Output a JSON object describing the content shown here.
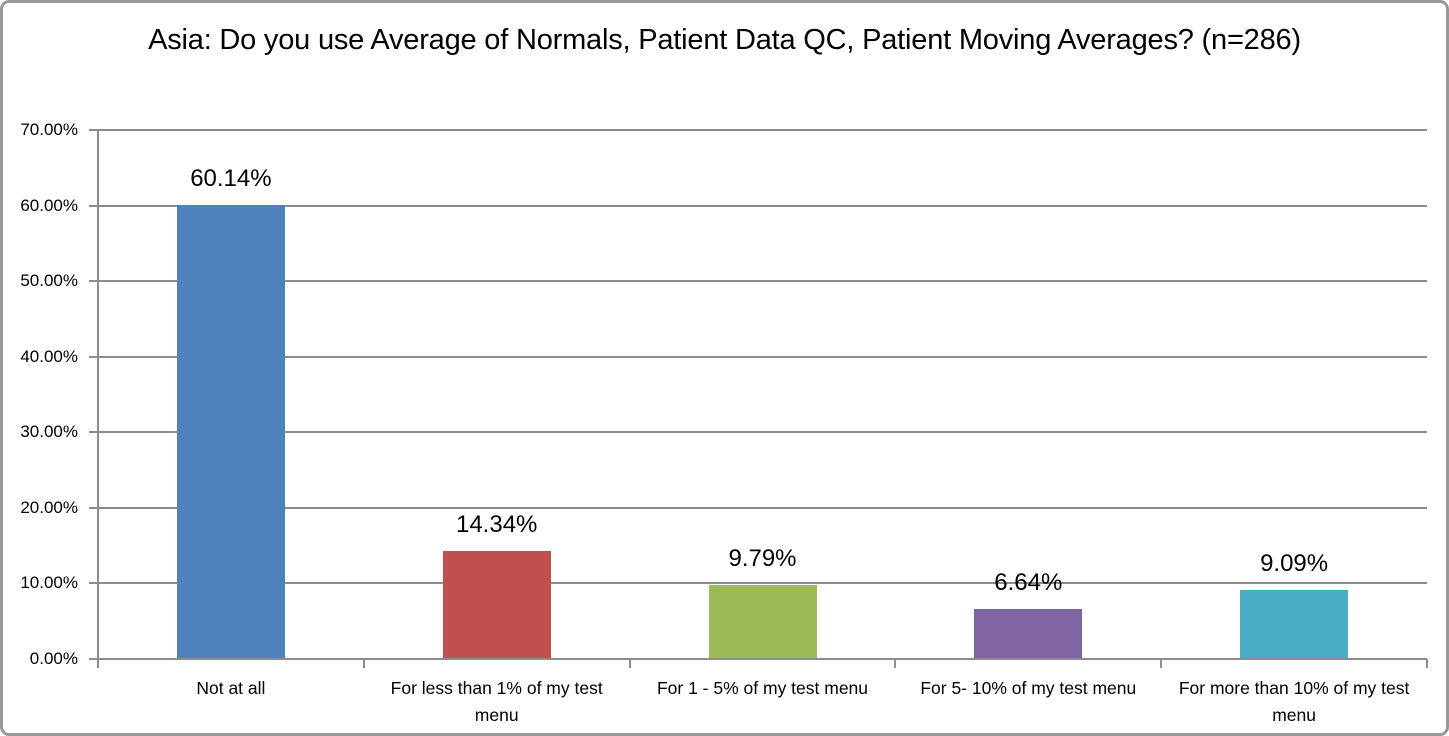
{
  "chart_data": {
    "type": "bar",
    "title": "Asia: Do you use Average of Normals, Patient Data QC, Patient Moving Averages? (n=286)",
    "categories": [
      "Not at all",
      "For less than 1% of my test menu",
      "For 1 - 5% of my test menu",
      "For 5- 10% of my test menu",
      "For more than 10% of my test menu"
    ],
    "values": [
      60.14,
      14.34,
      9.79,
      6.64,
      9.09
    ],
    "value_labels": [
      "60.14%",
      "14.34%",
      "9.79%",
      "6.64%",
      "9.09%"
    ],
    "bar_colors": [
      "#4F81BD",
      "#C0504D",
      "#9BBB59",
      "#8064A2",
      "#4BACC6"
    ],
    "xlabel": "",
    "ylabel": "",
    "ylim": [
      0,
      70
    ],
    "y_tick_step": 10,
    "y_tick_labels": [
      "0.00%",
      "10.00%",
      "20.00%",
      "30.00%",
      "40.00%",
      "50.00%",
      "60.00%",
      "70.00%"
    ],
    "grid": "horizontal-only",
    "legend": "none",
    "colors": {
      "gridline": "#8C8C8C",
      "axis": "#8C8C8C",
      "text": "#000000",
      "background": "#FFFFFF",
      "frame_border": "#999999"
    }
  }
}
